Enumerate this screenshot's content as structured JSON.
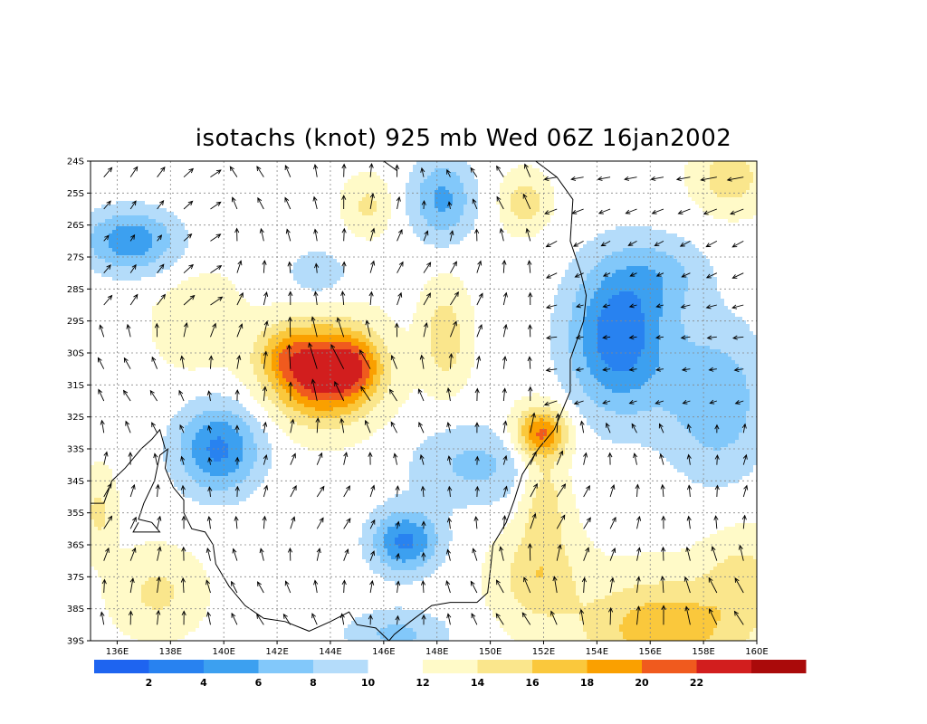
{
  "title": "isotachs (knot) 925 mb Wed 06Z 16jan2002",
  "map": {
    "lat_labels": [
      "24S",
      "25S",
      "26S",
      "27S",
      "28S",
      "29S",
      "30S",
      "31S",
      "32S",
      "33S",
      "34S",
      "35S",
      "36S",
      "37S",
      "38S",
      "39S"
    ],
    "lon_labels": [
      "136E",
      "138E",
      "140E",
      "142E",
      "144E",
      "146E",
      "148E",
      "150E",
      "152E",
      "154E",
      "156E",
      "158E",
      "160E"
    ],
    "lat_range": [
      -39,
      -24
    ],
    "lon_range": [
      135,
      160
    ],
    "grid": "dotted"
  },
  "colorbar": {
    "colors": [
      "#1e64f0",
      "#2882f0",
      "#3ca0f0",
      "#82c8fa",
      "#b4dcfa",
      "#ffffff",
      "#fffac8",
      "#fae68c",
      "#fac83c",
      "#faa000",
      "#f05a1e",
      "#d21e1e",
      "#aa0a0a"
    ],
    "labels": [
      "2",
      "4",
      "6",
      "8",
      "10",
      "12",
      "14",
      "16",
      "18",
      "20",
      "22"
    ]
  },
  "contours": {
    "levels": [
      2,
      4,
      6,
      8,
      10,
      12,
      14,
      16,
      18,
      20,
      22
    ],
    "features": [
      {
        "name": "max-central",
        "lon": 143.7,
        "lat": -30.6,
        "value": 23
      },
      {
        "name": "max-152",
        "lon": 151.9,
        "lat": -32.5,
        "value": 20
      },
      {
        "name": "max-156",
        "lon": 155.8,
        "lat": -38.8,
        "value": 17
      },
      {
        "name": "min-ne",
        "lon": 154.8,
        "lat": -29.5,
        "value": 3
      },
      {
        "name": "min-nw",
        "lon": 136.5,
        "lat": -26.5,
        "value": 4
      },
      {
        "name": "min-139",
        "lon": 139.8,
        "lat": -33.0,
        "value": 4
      },
      {
        "name": "min-147",
        "lon": 146.8,
        "lat": -35.9,
        "value": 4
      }
    ]
  }
}
